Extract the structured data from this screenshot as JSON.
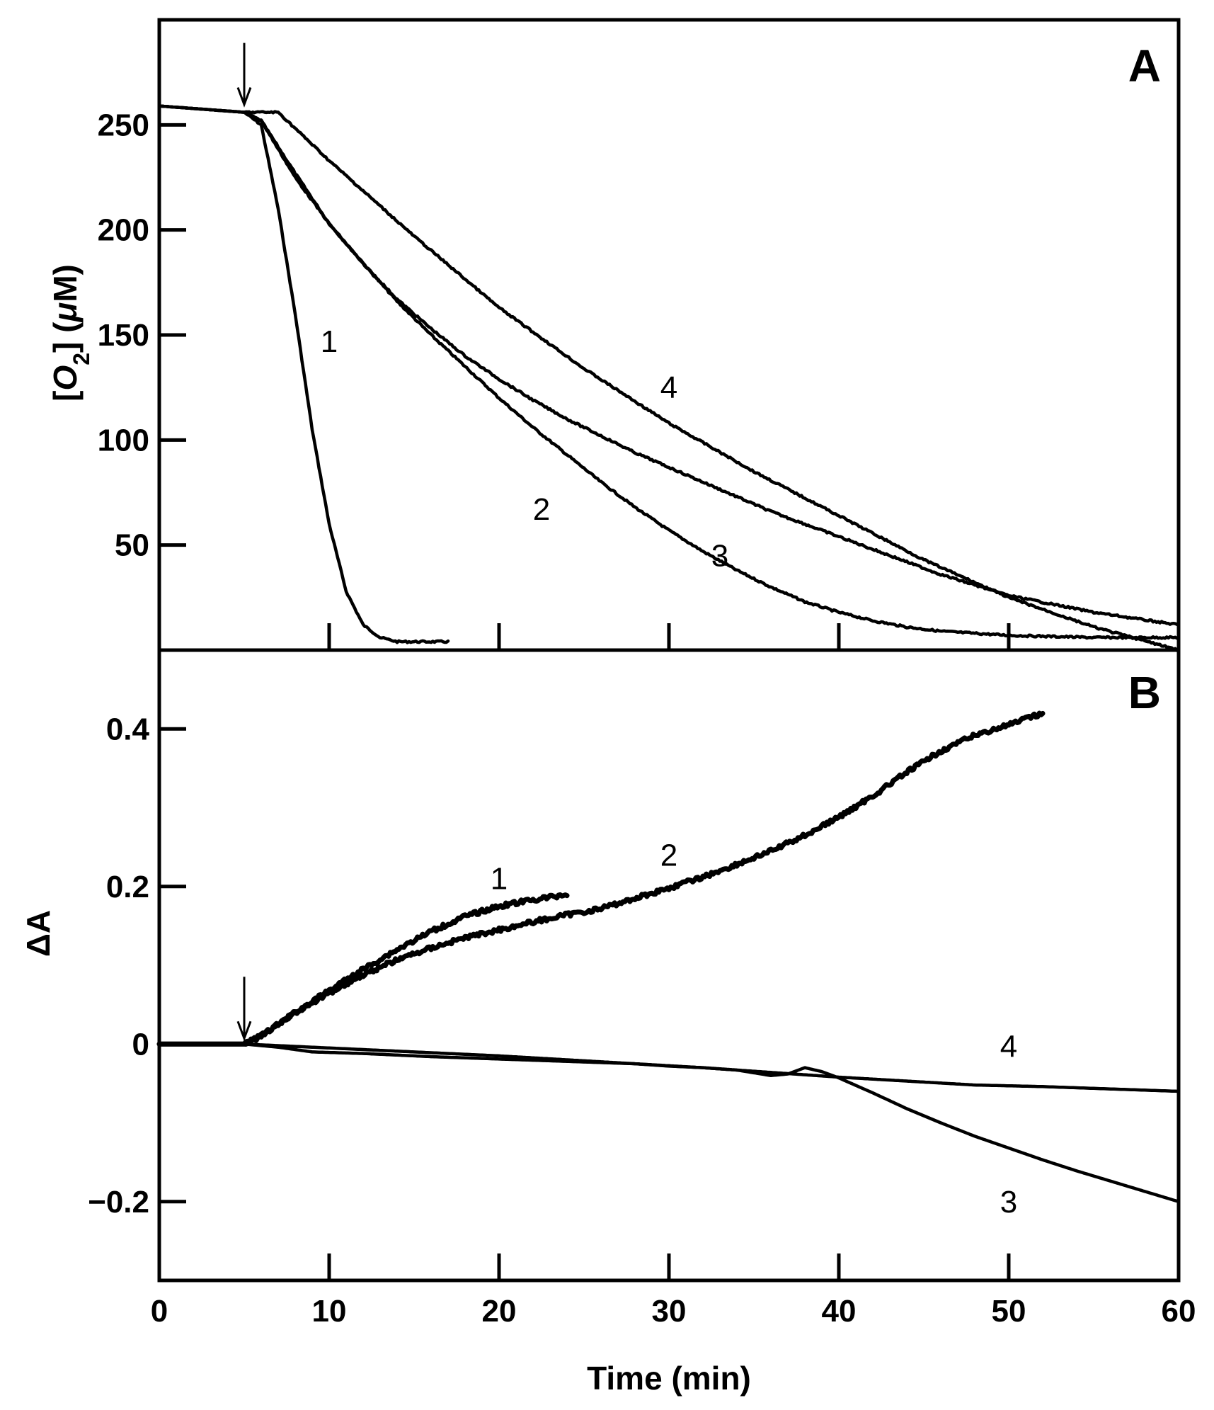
{
  "chart_data": [
    {
      "panel": "A",
      "type": "line",
      "panel_label": "A",
      "xlabel": "Time (min)",
      "ylabel_parts": [
        "[",
        "O",
        "2",
        "] (",
        "μ",
        "M)"
      ],
      "xlim": [
        0,
        60
      ],
      "ylim": [
        0,
        300
      ],
      "x_ticks": [
        10,
        20,
        30,
        40,
        50
      ],
      "y_ticks": [
        50,
        100,
        150,
        200,
        250
      ],
      "y_tick_labels": [
        "50",
        "100",
        "150",
        "200",
        "250"
      ],
      "arrow_at_x": 5,
      "series": [
        {
          "name": "1",
          "label": "1",
          "label_at": [
            10,
            147
          ],
          "x": [
            0,
            5,
            6,
            7,
            8,
            9,
            10,
            11,
            12,
            13,
            14,
            15,
            16,
            17
          ],
          "y": [
            259,
            256,
            250,
            210,
            160,
            105,
            60,
            28,
            12,
            6,
            4,
            4,
            4,
            4
          ]
        },
        {
          "name": "2",
          "label": "2",
          "label_at": [
            22.5,
            67
          ],
          "x": [
            0,
            5,
            6,
            8,
            10,
            12,
            14,
            16,
            18,
            20,
            22,
            24,
            26,
            28,
            30,
            32,
            34,
            36,
            38,
            40,
            42,
            44,
            46,
            48,
            50,
            55,
            60
          ],
          "y": [
            259,
            256,
            252,
            227,
            203,
            184,
            166,
            150,
            135,
            120,
            106,
            93,
            80,
            68,
            57,
            47,
            38,
            30,
            23,
            18,
            14,
            11,
            9,
            8,
            7,
            6,
            6
          ]
        },
        {
          "name": "3",
          "label": "3",
          "label_at": [
            33,
            45
          ],
          "x": [
            0,
            5,
            6,
            8,
            10,
            12,
            14,
            16,
            18,
            20,
            22,
            24,
            26,
            28,
            30,
            32,
            34,
            36,
            38,
            40,
            42,
            44,
            46,
            48,
            50,
            55,
            60
          ],
          "y": [
            259,
            256,
            252,
            225,
            203,
            184,
            167,
            153,
            140,
            129,
            119,
            110,
            102,
            94,
            87,
            80,
            73,
            66,
            60,
            54,
            48,
            42,
            36,
            31,
            26,
            18,
            12
          ]
        },
        {
          "name": "4",
          "label": "4",
          "label_at": [
            30,
            125
          ],
          "x": [
            0,
            5,
            7,
            10,
            15,
            20,
            25,
            30,
            35,
            40,
            45,
            50,
            55,
            60
          ],
          "y": [
            259,
            256,
            256,
            233,
            197,
            163,
            134,
            108,
            85,
            64,
            43,
            25,
            11,
            0
          ]
        }
      ]
    },
    {
      "panel": "B",
      "type": "line",
      "panel_label": "B",
      "xlabel": "Time (min)",
      "ylabel": "ΔA",
      "xlim": [
        0,
        60
      ],
      "ylim": [
        -0.3,
        0.5
      ],
      "x_ticks": [
        10,
        20,
        30,
        40,
        50
      ],
      "x_tick_labels_shown": [
        0,
        10,
        20,
        30,
        40,
        50,
        60
      ],
      "x_tick_labels": [
        "0",
        "10",
        "20",
        "30",
        "40",
        "50",
        "60"
      ],
      "y_ticks": [
        -0.2,
        0,
        0.2,
        0.4
      ],
      "y_tick_labels": [
        "−0.2",
        "0",
        "0.2",
        "0.4"
      ],
      "arrow_at_x": 5,
      "series": [
        {
          "name": "1",
          "label": "1",
          "label_at": [
            20,
            0.21
          ],
          "noisy": true,
          "x": [
            0,
            5,
            6,
            8,
            10,
            12,
            14,
            16,
            18,
            20,
            22,
            24
          ],
          "y": [
            0,
            0,
            0.01,
            0.04,
            0.068,
            0.095,
            0.12,
            0.143,
            0.162,
            0.175,
            0.183,
            0.19
          ]
        },
        {
          "name": "2",
          "label": "2",
          "label_at": [
            30,
            0.24
          ],
          "noisy": true,
          "x": [
            0,
            5,
            6,
            8,
            10,
            12,
            14,
            16,
            18,
            20,
            22,
            24,
            26,
            28,
            30,
            32,
            34,
            36,
            38,
            40,
            42,
            44,
            46,
            48,
            50,
            52
          ],
          "y": [
            0,
            0,
            0.01,
            0.04,
            0.065,
            0.088,
            0.107,
            0.122,
            0.135,
            0.145,
            0.155,
            0.164,
            0.172,
            0.185,
            0.198,
            0.212,
            0.228,
            0.245,
            0.265,
            0.288,
            0.315,
            0.345,
            0.372,
            0.392,
            0.405,
            0.42
          ]
        },
        {
          "name": "3",
          "label": "3",
          "label_at": [
            50,
            -0.2
          ],
          "noisy": false,
          "x": [
            0,
            5,
            8,
            12,
            16,
            20,
            24,
            28,
            30,
            32,
            34,
            36,
            37,
            38,
            39,
            40,
            42,
            44,
            46,
            48,
            50,
            52,
            54,
            56,
            58,
            60
          ],
          "y": [
            0,
            0,
            -0.003,
            -0.007,
            -0.011,
            -0.015,
            -0.02,
            -0.025,
            -0.028,
            -0.03,
            -0.033,
            -0.04,
            -0.038,
            -0.03,
            -0.035,
            -0.043,
            -0.062,
            -0.082,
            -0.1,
            -0.117,
            -0.132,
            -0.147,
            -0.161,
            -0.174,
            -0.187,
            -0.2
          ]
        },
        {
          "name": "4",
          "label": "4",
          "label_at": [
            50,
            -0.003
          ],
          "noisy": false,
          "x": [
            0,
            5,
            7,
            9,
            12,
            16,
            20,
            24,
            28,
            32,
            36,
            40,
            44,
            48,
            52,
            56,
            60
          ],
          "y": [
            0,
            0,
            -0.004,
            -0.01,
            -0.012,
            -0.016,
            -0.019,
            -0.022,
            -0.025,
            -0.03,
            -0.036,
            -0.042,
            -0.047,
            -0.052,
            -0.054,
            -0.057,
            -0.06
          ]
        }
      ]
    }
  ]
}
